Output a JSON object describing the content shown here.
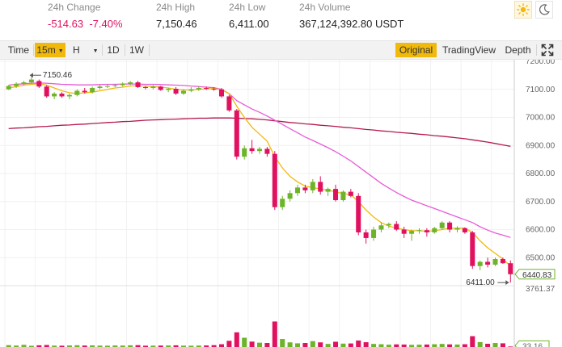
{
  "stats": [
    {
      "label": "24h Change",
      "value": "-514.63  -7.40%",
      "negative": true
    },
    {
      "label": "24h High",
      "value": "7,150.46",
      "negative": false
    },
    {
      "label": "24h Low",
      "value": "6,411.00",
      "negative": false
    },
    {
      "label": "24h Volume",
      "value": "367,124,392.80 USDT",
      "negative": false
    }
  ],
  "toolbar": {
    "time_label": "Time",
    "interval_label": "15m",
    "hour_label": "H",
    "day_label": "1D",
    "week_label": "1W",
    "original_label": "Original",
    "tradingview_label": "TradingView",
    "depth_label": "Depth"
  },
  "icons": {
    "light": "sun-icon",
    "dark": "moon-icon",
    "fullscreen": "expand-icon"
  },
  "colors": {
    "up": "#6eb42a",
    "down": "#e0115f",
    "accent": "#f0b90b",
    "ma_short": "#f0b90b",
    "ma_mid": "#e65cd8",
    "ma_long": "#b5194c"
  },
  "chart_data": {
    "type": "candlestick",
    "price_axis": {
      "min": 6400,
      "max": 7200,
      "ticks": [
        7200,
        7100,
        7000,
        6900,
        6800,
        6700,
        6600,
        6500
      ],
      "tick_labels": [
        "7200.00",
        "7100.00",
        "7000.00",
        "6900.00",
        "6800.00",
        "6700.00",
        "6600.00",
        "6500.00"
      ]
    },
    "last_price_label": "6440.83",
    "high_marker": {
      "label": "7150.46"
    },
    "low_marker": {
      "label": "6411.00"
    },
    "volume_axis": {
      "max": 3761.37,
      "max_label": "3761.37",
      "last_label": "33.16"
    },
    "candles": [
      [
        7100,
        7115,
        7098,
        7112
      ],
      [
        7112,
        7125,
        7105,
        7120
      ],
      [
        7120,
        7130,
        7115,
        7125
      ],
      [
        7125,
        7150.46,
        7120,
        7135
      ],
      [
        7130,
        7135,
        7105,
        7110
      ],
      [
        7110,
        7115,
        7070,
        7075
      ],
      [
        7075,
        7090,
        7065,
        7085
      ],
      [
        7085,
        7090,
        7070,
        7075
      ],
      [
        7075,
        7085,
        7065,
        7080
      ],
      [
        7080,
        7100,
        7075,
        7095
      ],
      [
        7095,
        7105,
        7085,
        7090
      ],
      [
        7090,
        7110,
        7085,
        7105
      ],
      [
        7105,
        7115,
        7100,
        7110
      ],
      [
        7110,
        7118,
        7105,
        7112
      ],
      [
        7112,
        7120,
        7108,
        7115
      ],
      [
        7115,
        7125,
        7110,
        7120
      ],
      [
        7120,
        7130,
        7115,
        7125
      ],
      [
        7125,
        7130,
        7105,
        7108
      ],
      [
        7108,
        7112,
        7100,
        7105
      ],
      [
        7105,
        7115,
        7100,
        7110
      ],
      [
        7110,
        7112,
        7095,
        7098
      ],
      [
        7098,
        7105,
        7090,
        7102
      ],
      [
        7102,
        7108,
        7080,
        7085
      ],
      [
        7085,
        7100,
        7080,
        7095
      ],
      [
        7095,
        7108,
        7090,
        7100
      ],
      [
        7100,
        7110,
        7095,
        7105
      ],
      [
        7105,
        7110,
        7098,
        7102
      ],
      [
        7102,
        7108,
        7095,
        7100
      ],
      [
        7100,
        7105,
        7070,
        7075
      ],
      [
        7075,
        7080,
        7020,
        7025
      ],
      [
        7025,
        7030,
        6850,
        6860
      ],
      [
        6860,
        6900,
        6850,
        6890
      ],
      [
        6890,
        6920,
        6870,
        6880
      ],
      [
        6880,
        6895,
        6870,
        6888
      ],
      [
        6888,
        6895,
        6860,
        6870
      ],
      [
        6870,
        6880,
        6670,
        6680
      ],
      [
        6680,
        6720,
        6670,
        6710
      ],
      [
        6710,
        6740,
        6700,
        6730
      ],
      [
        6730,
        6760,
        6720,
        6750
      ],
      [
        6750,
        6760,
        6730,
        6740
      ],
      [
        6740,
        6780,
        6730,
        6770
      ],
      [
        6770,
        6790,
        6725,
        6735
      ],
      [
        6735,
        6750,
        6720,
        6745
      ],
      [
        6745,
        6760,
        6700,
        6705
      ],
      [
        6705,
        6740,
        6700,
        6735
      ],
      [
        6735,
        6745,
        6715,
        6720
      ],
      [
        6720,
        6730,
        6580,
        6590
      ],
      [
        6590,
        6600,
        6550,
        6570
      ],
      [
        6570,
        6610,
        6560,
        6600
      ],
      [
        6600,
        6625,
        6590,
        6615
      ],
      [
        6615,
        6625,
        6605,
        6620
      ],
      [
        6620,
        6630,
        6595,
        6600
      ],
      [
        6600,
        6610,
        6570,
        6585
      ],
      [
        6585,
        6600,
        6560,
        6595
      ],
      [
        6595,
        6605,
        6585,
        6598
      ],
      [
        6598,
        6605,
        6575,
        6590
      ],
      [
        6590,
        6610,
        6585,
        6605
      ],
      [
        6605,
        6630,
        6600,
        6625
      ],
      [
        6625,
        6630,
        6590,
        6600
      ],
      [
        6600,
        6612,
        6590,
        6605
      ],
      [
        6605,
        6608,
        6585,
        6590
      ],
      [
        6590,
        6595,
        6460,
        6470
      ],
      [
        6470,
        6490,
        6455,
        6485
      ],
      [
        6485,
        6500,
        6465,
        6475
      ],
      [
        6475,
        6500,
        6470,
        6495
      ],
      [
        6495,
        6500,
        6478,
        6480
      ],
      [
        6480,
        6490,
        6411,
        6440.83
      ]
    ],
    "volume": [
      120,
      95,
      140,
      80,
      110,
      130,
      90,
      85,
      100,
      115,
      95,
      105,
      90,
      85,
      100,
      95,
      110,
      120,
      85,
      90,
      95,
      100,
      110,
      90,
      85,
      95,
      100,
      120,
      180,
      400,
      950,
      600,
      350,
      280,
      260,
      1650,
      520,
      300,
      240,
      260,
      380,
      300,
      200,
      340,
      220,
      230,
      420,
      310,
      200,
      180,
      150,
      170,
      160,
      140,
      150,
      160,
      180,
      200,
      170,
      160,
      180,
      700,
      320,
      210,
      260,
      240,
      33.16
    ],
    "ma_short": [
      7105,
      7110,
      7115,
      7118,
      7120,
      7115,
      7105,
      7095,
      7088,
      7085,
      7088,
      7090,
      7095,
      7100,
      7105,
      7108,
      7112,
      7113,
      7112,
      7110,
      7108,
      7105,
      7100,
      7098,
      7098,
      7100,
      7102,
      7103,
      7098,
      7085,
      7040,
      7000,
      6965,
      6940,
      6915,
      6860,
      6820,
      6790,
      6770,
      6755,
      6750,
      6745,
      6740,
      6735,
      6728,
      6725,
      6700,
      6670,
      6645,
      6625,
      6612,
      6605,
      6600,
      6596,
      6596,
      6594,
      6596,
      6600,
      6605,
      6605,
      6605,
      6590,
      6560,
      6535,
      6515,
      6495,
      6470
    ],
    "ma_mid": [
      7115,
      7118,
      7120,
      7122,
      7123,
      7122,
      7120,
      7118,
      7117,
      7116,
      7116,
      7116,
      7117,
      7118,
      7118,
      7119,
      7119,
      7119,
      7118,
      7118,
      7117,
      7116,
      7115,
      7114,
      7112,
      7110,
      7108,
      7106,
      7100,
      7085,
      7060,
      7045,
      7030,
      7018,
      7005,
      6990,
      6975,
      6960,
      6945,
      6930,
      6918,
      6905,
      6892,
      6878,
      6862,
      6845,
      6825,
      6805,
      6785,
      6765,
      6748,
      6732,
      6718,
      6705,
      6695,
      6685,
      6675,
      6665,
      6655,
      6645,
      6635,
      6625,
      6610,
      6598,
      6588,
      6580,
      6572
    ],
    "ma_long": [
      6960,
      6962,
      6963,
      6965,
      6967,
      6968,
      6970,
      6972,
      6973,
      6975,
      6976,
      6978,
      6980,
      6982,
      6983,
      6985,
      6986,
      6988,
      6990,
      6991,
      6992,
      6993,
      6994,
      6995,
      6996,
      6997,
      6997,
      6998,
      6998,
      6998,
      6997,
      6996,
      6995,
      6993,
      6991,
      6988,
      6985,
      6982,
      6980,
      6977,
      6975,
      6972,
      6970,
      6968,
      6965,
      6963,
      6960,
      6957,
      6955,
      6952,
      6950,
      6947,
      6945,
      6943,
      6940,
      6938,
      6935,
      6933,
      6930,
      6927,
      6924,
      6920,
      6916,
      6912,
      6907,
      6902,
      6897
    ]
  }
}
